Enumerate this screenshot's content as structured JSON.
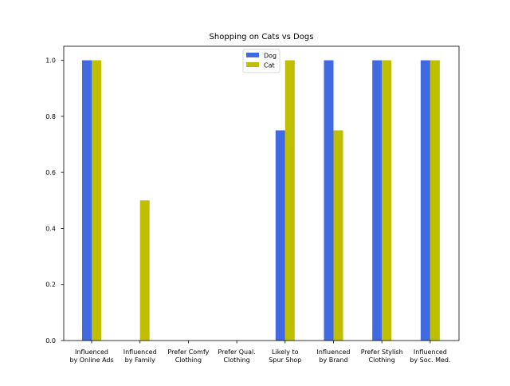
{
  "chart_data": {
    "type": "bar",
    "title": "Shopping on Cats vs Dogs",
    "xlabel": "",
    "ylabel": "",
    "categories": [
      [
        "Influenced",
        "by Online Ads"
      ],
      [
        "Influenced",
        "by Family"
      ],
      [
        "Prefer Comfy",
        "Clothing"
      ],
      [
        "Prefer Qual.",
        "Clothing"
      ],
      [
        "Likely to",
        "Spur Shop"
      ],
      [
        "Influenced",
        "by Brand"
      ],
      [
        "Prefer Stylish",
        "Clothing"
      ],
      [
        "Influenced",
        "by Soc. Med."
      ]
    ],
    "series": [
      {
        "name": "Dog",
        "color": "#4169e1",
        "values": [
          1.0,
          0.0,
          0.0,
          0.0,
          0.75,
          1.0,
          1.0,
          1.0
        ]
      },
      {
        "name": "Cat",
        "color": "#bfbf00",
        "values": [
          1.0,
          0.5,
          0.0,
          0.0,
          1.0,
          0.75,
          1.0,
          1.0
        ]
      }
    ],
    "ylim": [
      0,
      1.05
    ],
    "yticks": [
      0.0,
      0.2,
      0.4,
      0.6,
      0.8,
      1.0
    ],
    "ytick_labels": [
      "0.0",
      "0.2",
      "0.4",
      "0.6",
      "0.8",
      "1.0"
    ],
    "grid": false,
    "legend": {
      "placement": "top-center"
    }
  }
}
